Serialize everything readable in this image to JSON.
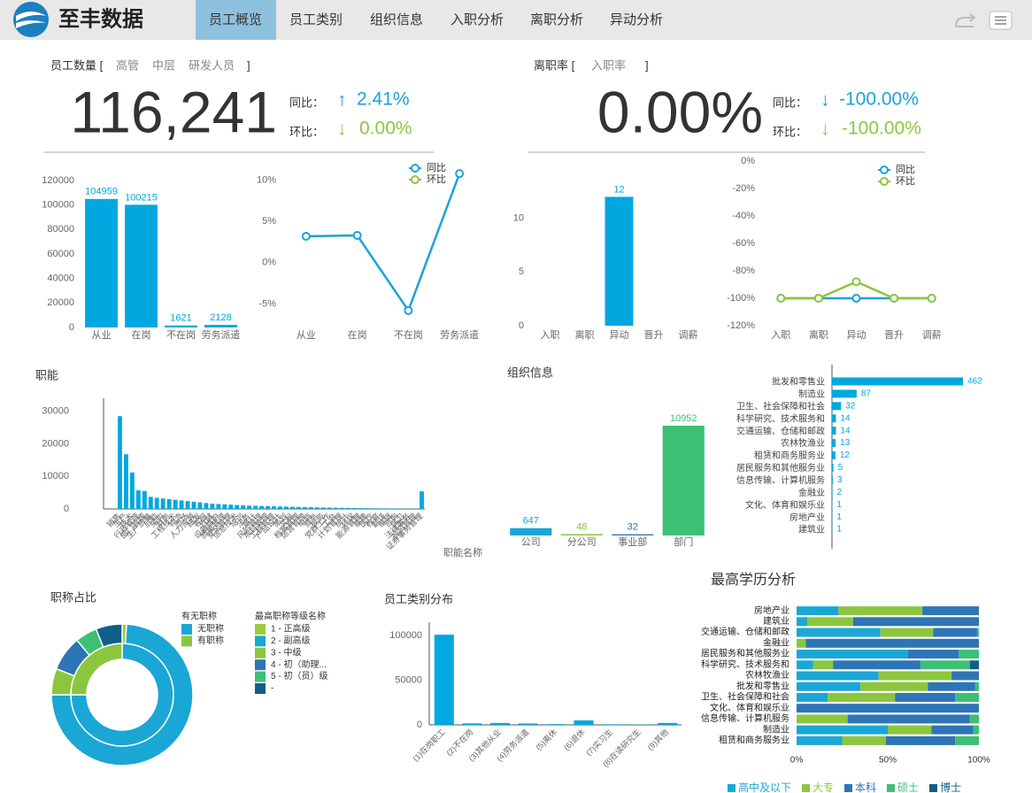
{
  "header": {
    "logo": "至丰数据",
    "tabs": [
      "员工概览",
      "员工类别",
      "组织信息",
      "入职分析",
      "离职分析",
      "异动分析"
    ]
  },
  "kpis": [
    {
      "title": "员工数量 [",
      "filters": [
        "高管",
        "中层",
        "研发人员"
      ],
      "close": "]",
      "value": "116,241",
      "yoy_label": "同比：",
      "yoy_arrow": "↑",
      "yoy": "2.41%",
      "mom_label": "环比：",
      "mom_arrow": "↓",
      "mom": "0.00%"
    },
    {
      "title": "离职率 [",
      "filters": [
        "入职率"
      ],
      "close": "]",
      "value": "0.00%",
      "yoy_label": "同比：",
      "yoy_arrow": "↓",
      "yoy": "-100.00%",
      "mom_label": "环比：",
      "mom_arrow": "↓",
      "mom": "-100.00%"
    }
  ],
  "chart_data": [
    {
      "type": "bar",
      "categories": [
        "从业",
        "在岗",
        "不在岗",
        "劳务派遣"
      ],
      "values": [
        104959,
        100215,
        1621,
        2128
      ],
      "color": "#00a8e0",
      "data_labels": true,
      "ylim": [
        0,
        120000
      ],
      "yticks": [
        0,
        20000,
        40000,
        60000,
        80000,
        100000,
        120000
      ]
    },
    {
      "type": "line",
      "categories": [
        "从业",
        "在岗",
        "不在岗",
        "劳务派遣"
      ],
      "series": [
        {
          "name": "同比",
          "color": "#1aa3d9",
          "values": [
            3.2,
            3.3,
            -5.8,
            10.8
          ]
        },
        {
          "name": "环比",
          "color": "#8cc63e",
          "values": [
            null,
            null,
            null,
            null
          ]
        }
      ],
      "ylim": [
        -7,
        12
      ],
      "yticks": [
        {
          "value": -5,
          "label": "-5%"
        },
        {
          "value": 0,
          "label": "0%"
        },
        {
          "value": 5,
          "label": "5%"
        },
        {
          "value": 10,
          "label": "10%"
        }
      ],
      "legend": "top-right"
    },
    {
      "type": "bar",
      "categories": [
        "入职",
        "离职",
        "异动",
        "晋升",
        "调薪"
      ],
      "values": [
        0,
        0,
        12,
        0,
        0
      ],
      "color": "#00a8e0",
      "data_labels": true,
      "ylim": [
        0,
        15
      ],
      "yticks": [
        0,
        5,
        10
      ]
    },
    {
      "type": "line",
      "categories": [
        "入职",
        "离职",
        "异动",
        "晋升",
        "调薪"
      ],
      "series": [
        {
          "name": "同比",
          "color": "#1aa3d9",
          "values": [
            -100,
            -100,
            -100,
            -100,
            -100
          ]
        },
        {
          "name": "环比",
          "color": "#8cc63e",
          "values": [
            -100,
            -100,
            -88,
            -100,
            -100
          ]
        }
      ],
      "ylim": [
        -120,
        0
      ],
      "yticks": [
        {
          "value": -120,
          "label": "-120%"
        },
        {
          "value": -100,
          "label": "-100%"
        },
        {
          "value": -80,
          "label": "-80%"
        },
        {
          "value": -60,
          "label": "-60%"
        },
        {
          "value": -40,
          "label": "-40%"
        },
        {
          "value": -20,
          "label": "-20%"
        },
        {
          "value": 0,
          "label": "0%"
        }
      ],
      "legend": "top-right"
    },
    {
      "type": "bar",
      "title": "职能",
      "x_label": "职能名称",
      "categories": [
        "销售",
        "生产",
        "技术",
        "行政管理",
        "部门管理",
        "生产质量",
        "后勤",
        "采购",
        "财务",
        "工程技术",
        "物流",
        "市场",
        "人力资源",
        "研发",
        "客服",
        "仓储",
        "设备维护",
        "质量管理",
        "安全管理",
        "信息技术",
        "培训",
        "法务",
        "审计",
        "风险管理",
        "项目管理",
        "工程管理",
        "产品设计",
        "策划",
        "文秘",
        "档案管理",
        "运营管理",
        "电商",
        "商务",
        "投资",
        "党群工作",
        "工会",
        "计划管理",
        "统计",
        "环保",
        "能源管理",
        "基建",
        "医疗",
        "教育",
        "翻译",
        "编辑",
        "咨询",
        "保卫",
        "法律事务",
        "投资管理",
        "证券事务管理"
      ],
      "values": [
        28500,
        16800,
        11200,
        5700,
        5500,
        3700,
        3400,
        3200,
        3000,
        2800,
        2600,
        2400,
        2200,
        2000,
        1800,
        1600,
        1500,
        1400,
        1300,
        1200,
        1100,
        1000,
        950,
        900,
        850,
        800,
        750,
        700,
        650,
        600,
        560,
        520,
        480,
        440,
        400,
        370,
        340,
        310,
        280,
        250,
        220,
        200,
        180,
        160,
        140,
        120,
        100,
        80,
        60,
        5400
      ],
      "color": "#00a8e0",
      "ylim": [
        0,
        34000
      ],
      "yticks": [
        0,
        10000,
        20000,
        30000
      ]
    },
    {
      "type": "bar",
      "title": "组织信息",
      "categories": [
        "公司",
        "分公司",
        "事业部",
        "部门"
      ],
      "values": [
        647,
        48,
        32,
        10952
      ],
      "colors": [
        "#1aa7d6",
        "#8cc63e",
        "#2e75b6",
        "#3dbf74"
      ],
      "data_labels": true
    },
    {
      "type": "hbar",
      "categories": [
        "批发和零售业",
        "制造业",
        "卫生、社会保障和社会",
        "科学研究、技术服务和",
        "交通运输、仓储和邮政",
        "农林牧渔业",
        "租赁和商务服务业",
        "居民服务和其他服务业",
        "信息传输、计算机服务",
        "金融业",
        "文化、体育和娱乐业",
        "房地产业",
        "建筑业"
      ],
      "values": [
        462,
        87,
        32,
        14,
        14,
        13,
        12,
        5,
        3,
        2,
        1,
        1,
        1
      ],
      "color": "#00a8e0",
      "data_labels": true
    },
    {
      "type": "pie",
      "title": "职称占比",
      "series": [
        {
          "name": "有无职称",
          "categories": [
            "无职称",
            "有职称"
          ],
          "colors": [
            "#1aa7d6",
            "#8cc63e"
          ],
          "values": [
            75,
            25
          ]
        },
        {
          "name": "最高职称等级名称",
          "categories": [
            "1 - 正高级",
            "2 - 副高级",
            "3 - 中级",
            "4 - 初（助理...",
            "5 - 初（员）级",
            "-"
          ],
          "colors": [
            "#9ccc3c",
            "#1aa7d6",
            "#8cc63e",
            "#2e75b6",
            "#3dbf74",
            "#0e5f8a"
          ],
          "values": [
            1,
            74,
            6,
            8,
            5,
            6
          ]
        }
      ]
    },
    {
      "type": "bar",
      "title": "员工类别分布",
      "categories": [
        "(1)在岗职工",
        "(2)不在岗",
        "(3)其他从业",
        "(4)劳务派遣",
        "(5)离休",
        "(6)退休",
        "(7)实习生",
        "(8)在读研究生",
        "(9)其他"
      ],
      "values": [
        101000,
        1600,
        2100,
        1500,
        800,
        5000,
        600,
        400,
        2100
      ],
      "color": "#00a8e0",
      "ylim": [
        0,
        115000
      ],
      "yticks": [
        0,
        50000,
        100000
      ]
    },
    {
      "type": "stacked_hbar",
      "title": "最高学历分析",
      "categories": [
        "房地产业",
        "建筑业",
        "交通运输、仓储和邮政",
        "金融业",
        "居民服务和其他服务业",
        "科学研究、技术服务和",
        "农林牧渔业",
        "批发和零售业",
        "卫生、社会保障和社会",
        "文化、体育和娱乐业",
        "信息传输、计算机服务",
        "制造业",
        "租赁和商务服务业"
      ],
      "series": [
        {
          "name": "高中及以下",
          "color": "#1aa7d6",
          "values": [
            23,
            6,
            46,
            0,
            61,
            9,
            45,
            35,
            17,
            0,
            0,
            50,
            25
          ]
        },
        {
          "name": "大专",
          "color": "#8cc63e",
          "values": [
            46,
            25,
            29,
            5,
            0,
            11,
            40,
            37,
            37,
            0,
            28,
            24,
            24
          ]
        },
        {
          "name": "本科",
          "color": "#2e75b6",
          "values": [
            31,
            69,
            24,
            95,
            28,
            48,
            15,
            26,
            33,
            100,
            67,
            23,
            38
          ]
        },
        {
          "name": "硕士",
          "color": "#3dbf74",
          "values": [
            0,
            0,
            1,
            0,
            11,
            27,
            0,
            2,
            13,
            0,
            5,
            3,
            13
          ]
        },
        {
          "name": "博士",
          "color": "#0e5f8a",
          "values": [
            0,
            0,
            0,
            0,
            0,
            5,
            0,
            0,
            0,
            0,
            0,
            0,
            0
          ]
        }
      ],
      "xlim": [
        0,
        100
      ],
      "xticks": [
        {
          "value": 0,
          "label": "0%"
        },
        {
          "value": 50,
          "label": "50%"
        },
        {
          "value": 100,
          "label": "100%"
        }
      ],
      "legend": "bottom"
    }
  ]
}
